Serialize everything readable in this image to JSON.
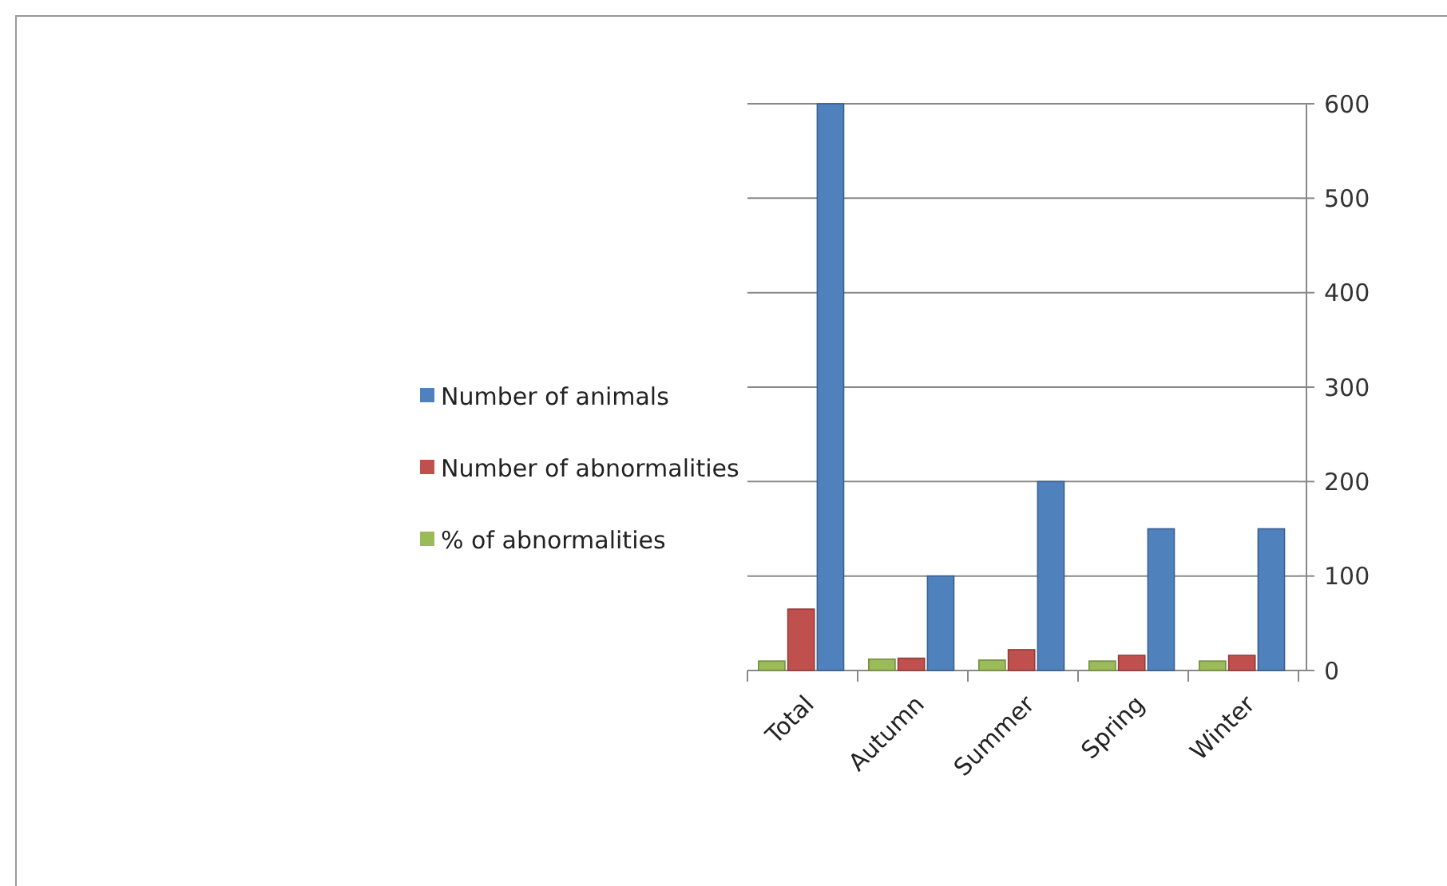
{
  "chart_data": {
    "type": "bar",
    "categories": [
      "Total",
      "Autumn",
      "Summer",
      "Spring",
      "Winter"
    ],
    "series": [
      {
        "name": "Number of animals",
        "color": "#4f81bd",
        "values": [
          600,
          100,
          200,
          150,
          150
        ]
      },
      {
        "name": "Number of abnormalities",
        "color": "#c0504d",
        "values": [
          65,
          13,
          22,
          16,
          16
        ]
      },
      {
        "name": "% of abnormalities",
        "color": "#9bbb59",
        "values": [
          10,
          12,
          11,
          10,
          10
        ]
      }
    ],
    "ylim": [
      0,
      600
    ],
    "yticks": [
      0,
      100,
      200,
      300,
      400,
      500,
      600
    ],
    "grid": "y",
    "legend": "left"
  }
}
